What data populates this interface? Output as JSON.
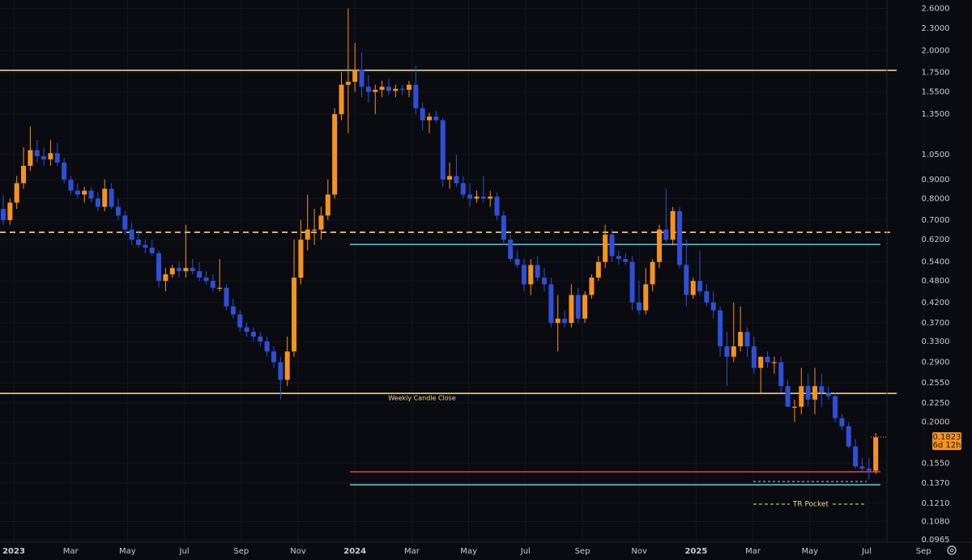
{
  "chart_data": {
    "type": "candlestick",
    "log_scale": true,
    "grid": true,
    "up_color": "#f7931a",
    "down_color": "#2e4fd8",
    "ylim": [
      0.095,
      2.74
    ],
    "yticks": [
      {
        "value": 2.6,
        "label": "2.6000"
      },
      {
        "value": 2.3,
        "label": "2.3000"
      },
      {
        "value": 2.0,
        "label": "2.0000"
      },
      {
        "value": 1.75,
        "label": "1.7500"
      },
      {
        "value": 1.55,
        "label": "1.5500"
      },
      {
        "value": 1.35,
        "label": "1.3500"
      },
      {
        "value": 1.05,
        "label": "1.0500"
      },
      {
        "value": 0.9,
        "label": "0.9000"
      },
      {
        "value": 0.8,
        "label": "0.8000"
      },
      {
        "value": 0.7,
        "label": "0.7000"
      },
      {
        "value": 0.62,
        "label": "0.6200"
      },
      {
        "value": 0.54,
        "label": "0.5400"
      },
      {
        "value": 0.48,
        "label": "0.4800"
      },
      {
        "value": 0.42,
        "label": "0.4200"
      },
      {
        "value": 0.37,
        "label": "0.3700"
      },
      {
        "value": 0.33,
        "label": "0.3300"
      },
      {
        "value": 0.29,
        "label": "0.2900"
      },
      {
        "value": 0.255,
        "label": "0.2550"
      },
      {
        "value": 0.225,
        "label": "0.2250"
      },
      {
        "value": 0.2,
        "label": "0.2000"
      },
      {
        "value": 0.155,
        "label": "0.1550"
      },
      {
        "value": 0.137,
        "label": "0.1370"
      },
      {
        "value": 0.121,
        "label": "0.1210"
      },
      {
        "value": 0.108,
        "label": "0.1080"
      },
      {
        "value": 0.0965,
        "label": "0.0965"
      }
    ],
    "x_labels": [
      "2023",
      "Mar",
      "May",
      "Jul",
      "Sep",
      "Nov",
      "2024",
      "Mar",
      "May",
      "Jul",
      "Sep",
      "Nov",
      "2025",
      "Mar",
      "May",
      "Jul",
      "Sep"
    ],
    "open": [
      0.75,
      0.7,
      0.78,
      0.88,
      0.98,
      1.08,
      1.04,
      1.02,
      1.06,
      1.0,
      0.9,
      0.84,
      0.82,
      0.84,
      0.8,
      0.76,
      0.85,
      0.76,
      0.72,
      0.66,
      0.62,
      0.6,
      0.59,
      0.57,
      0.48,
      0.5,
      0.52,
      0.51,
      0.52,
      0.51,
      0.49,
      0.48,
      0.46,
      0.46,
      0.41,
      0.39,
      0.36,
      0.35,
      0.34,
      0.33,
      0.31,
      0.29,
      0.26,
      0.31,
      0.49,
      0.62,
      0.66,
      0.66,
      0.72,
      0.82,
      1.35,
      1.62,
      1.65,
      1.78,
      1.6,
      1.55,
      1.57,
      1.6,
      1.56,
      1.58,
      1.57,
      1.62,
      1.4,
      1.3,
      1.33,
      1.3,
      0.9,
      0.92,
      0.88,
      0.82,
      0.8,
      0.81,
      0.8,
      0.81,
      0.72,
      0.62,
      0.55,
      0.53,
      0.47,
      0.53,
      0.49,
      0.47,
      0.37,
      0.38,
      0.37,
      0.44,
      0.38,
      0.44,
      0.49,
      0.54,
      0.64,
      0.56,
      0.55,
      0.54,
      0.42,
      0.4,
      0.47,
      0.54,
      0.66,
      0.62,
      0.74,
      0.53,
      0.44,
      0.48,
      0.45,
      0.42,
      0.4,
      0.32,
      0.3,
      0.32,
      0.35,
      0.32,
      0.28,
      0.3,
      0.29,
      0.29,
      0.25,
      0.22,
      0.22,
      0.25,
      0.23,
      0.25,
      0.24,
      0.235,
      0.205,
      0.195,
      0.172,
      0.152,
      0.15,
      0.148
    ],
    "high": [
      0.82,
      0.8,
      0.92,
      1.1,
      1.25,
      1.15,
      1.1,
      1.15,
      1.13,
      1.03,
      0.92,
      0.88,
      0.86,
      0.86,
      0.83,
      0.9,
      0.88,
      0.8,
      0.74,
      0.69,
      0.66,
      0.62,
      0.62,
      0.58,
      0.52,
      0.53,
      0.54,
      0.68,
      0.55,
      0.54,
      0.51,
      0.5,
      0.55,
      0.47,
      0.43,
      0.4,
      0.37,
      0.36,
      0.35,
      0.34,
      0.32,
      0.3,
      0.34,
      0.62,
      0.7,
      0.82,
      0.75,
      0.76,
      0.9,
      1.4,
      1.75,
      2.6,
      2.1,
      1.98,
      1.72,
      1.62,
      1.66,
      1.68,
      1.62,
      1.62,
      1.66,
      1.82,
      1.45,
      1.36,
      1.38,
      1.32,
      1.0,
      1.05,
      0.92,
      0.88,
      0.84,
      0.92,
      0.84,
      0.83,
      0.74,
      0.64,
      0.58,
      0.55,
      0.55,
      0.56,
      0.52,
      0.49,
      0.44,
      0.4,
      0.47,
      0.46,
      0.45,
      0.5,
      0.56,
      0.68,
      0.66,
      0.58,
      0.57,
      0.56,
      0.48,
      0.52,
      0.55,
      0.68,
      0.85,
      0.76,
      0.76,
      0.62,
      0.49,
      0.58,
      0.47,
      0.45,
      0.41,
      0.35,
      0.42,
      0.41,
      0.36,
      0.34,
      0.3,
      0.31,
      0.3,
      0.3,
      0.26,
      0.23,
      0.28,
      0.27,
      0.28,
      0.27,
      0.25,
      0.24,
      0.21,
      0.2,
      0.18,
      0.16,
      0.16,
      0.187
    ],
    "low": [
      0.68,
      0.68,
      0.75,
      0.85,
      0.95,
      1.0,
      0.98,
      0.98,
      0.98,
      0.88,
      0.82,
      0.8,
      0.78,
      0.78,
      0.74,
      0.74,
      0.75,
      0.7,
      0.64,
      0.6,
      0.59,
      0.57,
      0.56,
      0.46,
      0.45,
      0.49,
      0.49,
      0.49,
      0.5,
      0.48,
      0.47,
      0.45,
      0.45,
      0.4,
      0.38,
      0.35,
      0.34,
      0.33,
      0.32,
      0.3,
      0.28,
      0.23,
      0.25,
      0.3,
      0.47,
      0.58,
      0.6,
      0.62,
      0.7,
      0.8,
      1.3,
      1.2,
      1.55,
      1.5,
      1.45,
      1.35,
      1.5,
      1.52,
      1.5,
      1.52,
      1.5,
      1.35,
      1.22,
      1.2,
      1.28,
      0.86,
      0.85,
      0.86,
      0.8,
      0.76,
      0.78,
      0.78,
      0.76,
      0.7,
      0.6,
      0.54,
      0.52,
      0.45,
      0.44,
      0.48,
      0.45,
      0.36,
      0.31,
      0.36,
      0.36,
      0.37,
      0.37,
      0.43,
      0.48,
      0.52,
      0.54,
      0.53,
      0.53,
      0.4,
      0.39,
      0.39,
      0.45,
      0.52,
      0.61,
      0.6,
      0.52,
      0.41,
      0.43,
      0.44,
      0.41,
      0.38,
      0.3,
      0.25,
      0.29,
      0.31,
      0.3,
      0.27,
      0.24,
      0.28,
      0.27,
      0.24,
      0.22,
      0.2,
      0.21,
      0.22,
      0.21,
      0.22,
      0.23,
      0.2,
      0.19,
      0.17,
      0.15,
      0.148,
      0.14,
      0.145
    ],
    "close": [
      0.7,
      0.78,
      0.88,
      0.98,
      1.08,
      1.04,
      1.02,
      1.06,
      1.0,
      0.9,
      0.84,
      0.82,
      0.84,
      0.8,
      0.76,
      0.85,
      0.76,
      0.72,
      0.66,
      0.62,
      0.6,
      0.59,
      0.57,
      0.48,
      0.5,
      0.52,
      0.51,
      0.52,
      0.51,
      0.49,
      0.48,
      0.46,
      0.46,
      0.41,
      0.39,
      0.36,
      0.35,
      0.34,
      0.33,
      0.31,
      0.29,
      0.26,
      0.31,
      0.49,
      0.62,
      0.66,
      0.66,
      0.72,
      0.82,
      1.35,
      1.62,
      1.65,
      1.78,
      1.6,
      1.55,
      1.57,
      1.6,
      1.56,
      1.58,
      1.57,
      1.62,
      1.4,
      1.3,
      1.33,
      1.3,
      0.9,
      0.92,
      0.88,
      0.82,
      0.8,
      0.81,
      0.8,
      0.81,
      0.72,
      0.62,
      0.55,
      0.53,
      0.47,
      0.53,
      0.49,
      0.47,
      0.37,
      0.38,
      0.37,
      0.44,
      0.38,
      0.44,
      0.49,
      0.54,
      0.64,
      0.56,
      0.55,
      0.54,
      0.42,
      0.4,
      0.47,
      0.54,
      0.66,
      0.62,
      0.74,
      0.53,
      0.44,
      0.48,
      0.45,
      0.42,
      0.4,
      0.32,
      0.3,
      0.32,
      0.35,
      0.32,
      0.28,
      0.3,
      0.29,
      0.29,
      0.25,
      0.22,
      0.22,
      0.25,
      0.23,
      0.25,
      0.24,
      0.235,
      0.205,
      0.195,
      0.172,
      0.152,
      0.15,
      0.148,
      0.182
    ],
    "levels": [
      {
        "value": 1.772,
        "color": "#f0e49c",
        "dashed": false
      },
      {
        "value": 0.649,
        "color": "#f5dd6a",
        "dashed": true
      },
      {
        "value": 0.602,
        "color": "#4fc3dd",
        "dashed": false
      },
      {
        "value": 0.239,
        "color": "#f0e49c",
        "dashed": false
      },
      {
        "value": 0.147,
        "color": "#d9435a",
        "dashed": false
      },
      {
        "value": 0.1356,
        "color": "#4fc3dd",
        "dashed": false
      }
    ],
    "annotations": {
      "weekly_close": "Weekly Candle Close",
      "tr_pocket": "TR Pocket"
    },
    "last_price": {
      "value": 0.1823,
      "label": "0.1823",
      "countdown": "6d 12h"
    }
  }
}
